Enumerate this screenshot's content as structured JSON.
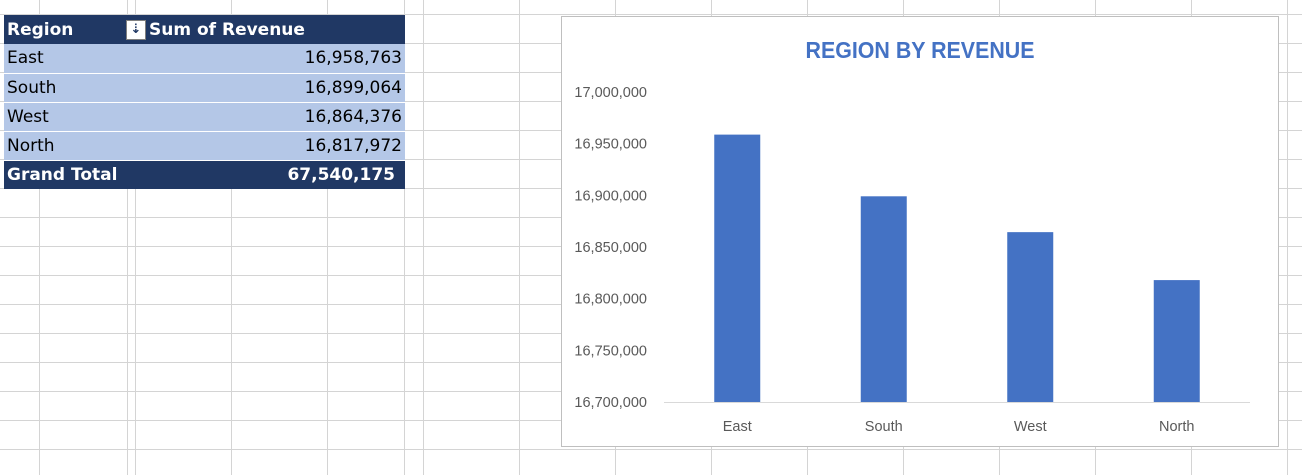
{
  "pivot": {
    "header": {
      "row_label": "Region",
      "value_label": "Sum of Revenue",
      "sort_icon": "sort-descending-icon"
    },
    "rows": [
      {
        "label": "East",
        "value": "16,958,763"
      },
      {
        "label": "South",
        "value": "16,899,064"
      },
      {
        "label": "West",
        "value": "16,864,376"
      },
      {
        "label": "North",
        "value": "16,817,972"
      }
    ],
    "total": {
      "label": "Grand Total",
      "value": "67,540,175"
    }
  },
  "colors": {
    "pivot_header": "#203864",
    "pivot_row": "#b4c7e7",
    "bar": "#4472c4",
    "title": "#4472c4"
  },
  "chart_data": {
    "type": "bar",
    "title": "REGION BY REVENUE",
    "categories": [
      "East",
      "South",
      "West",
      "North"
    ],
    "values": [
      16958763,
      16899064,
      16864376,
      16817972
    ],
    "ylim": [
      16700000,
      17000000
    ],
    "yticks": [
      17000000,
      16950000,
      16900000,
      16850000,
      16800000,
      16750000,
      16700000
    ],
    "ytick_labels": [
      "17,000,000",
      "16,950,000",
      "16,900,000",
      "16,850,000",
      "16,800,000",
      "16,750,000",
      "16,700,000"
    ],
    "grid": false,
    "legend": "none"
  }
}
